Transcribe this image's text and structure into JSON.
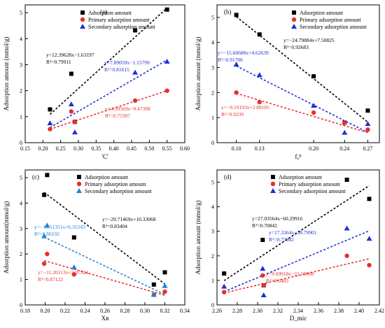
{
  "colors": {
    "adsorption": "#000000",
    "primary": "#e8302a",
    "secondary": "#1f2fd6",
    "secondary_c": "#1b83d8"
  },
  "chart_data": [
    {
      "type": "scatter",
      "panel": "(a)",
      "xlabel": "'C'",
      "ylabel": "Adsorption amount (mmol/g)",
      "xlim": [
        0.15,
        0.6
      ],
      "ylim": [
        0,
        5.3
      ],
      "xticks": [
        "0.15",
        "0.20",
        "0.25",
        "0.30",
        "0.35",
        "0.40",
        "0.45",
        "0.50",
        "0.55",
        "0.60"
      ],
      "yticks": [
        "0",
        "1",
        "2",
        "3",
        "4",
        "5"
      ],
      "legend": [
        "Adsorption amount",
        "Primary adsorption amount",
        "Secondary adsorption amount"
      ],
      "series": [
        {
          "name": "Adsorption amount",
          "marker": "square",
          "color": "#000000",
          "x": [
            0.22,
            0.28,
            0.29,
            0.46,
            0.55
          ],
          "y": [
            1.28,
            2.65,
            0.8,
            4.32,
            5.12
          ]
        },
        {
          "name": "Primary adsorption amount",
          "marker": "circle",
          "color": "#e8302a",
          "x": [
            0.22,
            0.28,
            0.29,
            0.46,
            0.55
          ],
          "y": [
            0.52,
            1.2,
            0.8,
            1.62,
            2.0
          ]
        },
        {
          "name": "Secondary adsorption amount",
          "marker": "triangle",
          "color": "#1f2fd6",
          "x": [
            0.22,
            0.28,
            0.29,
            0.46,
            0.55
          ],
          "y": [
            0.75,
            1.48,
            0.4,
            2.7,
            3.12
          ]
        }
      ],
      "fits": [
        {
          "color": "#000000",
          "x": [
            0.22,
            0.55
          ],
          "y": [
            1.09,
            5.18
          ],
          "equation": "y=12.39628x−1.63197",
          "r2": "R²=0.79911"
        },
        {
          "color": "#1f2fd6",
          "x": [
            0.22,
            0.55
          ],
          "y": [
            0.58,
            3.18
          ],
          "equation": "y=7.89059x−1.15799",
          "r2": "R²=0.81615"
        },
        {
          "color": "#e8302a",
          "x": [
            0.22,
            0.55
          ],
          "y": [
            0.52,
            2.0
          ],
          "equation": "y=4.50569x−0.47398",
          "r2": "R²=0.75307"
        }
      ]
    },
    {
      "type": "scatter",
      "panel": "(b)",
      "xlabel": "fₐᴮ",
      "ylabel": "Adsorption amount (mmol/g)",
      "xlim": [
        0.075,
        0.285
      ],
      "ylim": [
        0,
        5.5
      ],
      "xticks": [
        "0.10",
        "0.13",
        "0.20",
        "0.24",
        "0.27"
      ],
      "xtick_values": [
        0.1,
        0.13,
        0.2,
        0.24,
        0.27
      ],
      "yticks": [
        "0",
        "1",
        "2",
        "3",
        "4",
        "5"
      ],
      "legend": [
        "Adsorption amount",
        "Primary adsorption amount",
        "Secondary adsorption amount"
      ],
      "series": [
        {
          "name": "Adsorption amount",
          "marker": "square",
          "color": "#000000",
          "x": [
            0.1,
            0.13,
            0.2,
            0.24,
            0.27
          ],
          "y": [
            5.1,
            4.32,
            2.65,
            0.8,
            1.28
          ]
        },
        {
          "name": "Primary adsorption amount",
          "marker": "circle",
          "color": "#e8302a",
          "x": [
            0.1,
            0.13,
            0.2,
            0.24,
            0.27
          ],
          "y": [
            2.0,
            1.62,
            1.2,
            0.8,
            0.52
          ]
        },
        {
          "name": "Secondary adsorption amount",
          "marker": "triangle",
          "color": "#1f2fd6",
          "x": [
            0.1,
            0.13,
            0.2,
            0.24,
            0.27
          ],
          "y": [
            3.12,
            2.7,
            1.48,
            0.4,
            0.75
          ]
        }
      ],
      "fits": [
        {
          "color": "#000000",
          "x": [
            0.1,
            0.27
          ],
          "y": [
            5.03,
            0.82
          ],
          "equation": "y=−24.79884x+7.50825",
          "r2": "R²=0.92683"
        },
        {
          "color": "#1f2fd6",
          "x": [
            0.1,
            0.27
          ],
          "y": [
            3.06,
            0.41
          ],
          "equation": "y=−15.60688x+4.62639",
          "r2": "R²=0.91706"
        },
        {
          "color": "#e8302a",
          "x": [
            0.1,
            0.27
          ],
          "y": [
            1.97,
            0.4
          ],
          "equation": "y=−9.19193x+2.88185",
          "r2": "R²=0.9239"
        }
      ]
    },
    {
      "type": "scatter",
      "panel": "(c)",
      "xlabel": "Xʙ",
      "ylabel": "Adsorption amount(mmol/g)",
      "xlim": [
        0.18,
        0.34
      ],
      "ylim": [
        0,
        5.3
      ],
      "xticks": [
        "0.18",
        "0.20",
        "0.22",
        "0.24",
        "0.26",
        "0.28",
        "0.30",
        "0.32",
        "0.34"
      ],
      "yticks": [
        "0",
        "1",
        "2",
        "3",
        "4",
        "5"
      ],
      "legend": [
        "Adsorption amount",
        "Primary adsorption amount",
        "Secondary adsorption amount"
      ],
      "series": [
        {
          "name": "Adsorption amount",
          "marker": "square",
          "color": "#000000",
          "x": [
            0.199,
            0.202,
            0.229,
            0.309,
            0.32
          ],
          "y": [
            4.32,
            5.1,
            2.65,
            0.8,
            1.28
          ]
        },
        {
          "name": "Primary adsorption amount",
          "marker": "circle",
          "color": "#e8302a",
          "x": [
            0.199,
            0.202,
            0.229,
            0.309,
            0.32
          ],
          "y": [
            1.62,
            2.0,
            1.2,
            0.4,
            0.52
          ]
        },
        {
          "name": "Secondary adsorption amount",
          "marker": "triangle",
          "color": "#1b83d8",
          "x": [
            0.199,
            0.202,
            0.229,
            0.309,
            0.32
          ],
          "y": [
            2.7,
            3.12,
            1.48,
            0.4,
            0.75
          ]
        }
      ],
      "fits": [
        {
          "color": "#000000",
          "x": [
            0.199,
            0.32
          ],
          "y": [
            4.42,
            0.82
          ],
          "equation": "y=−29.71469x+10.33068",
          "r2": "R²=0.83404"
        },
        {
          "color": "#1b83d8",
          "x": [
            0.199,
            0.32
          ],
          "y": [
            2.66,
            0.41
          ],
          "equation": "y=−18.51351x+6.35543",
          "r2": "R²=0.80192"
        },
        {
          "color": "#e8302a",
          "x": [
            0.199,
            0.32
          ],
          "y": [
            1.74,
            0.38
          ],
          "equation": "y=−11.20113x+3.97524",
          "r2": "R²=0.87122"
        }
      ]
    },
    {
      "type": "scatter",
      "panel": "(d)",
      "xlabel": "D_mic",
      "ylabel": "Adsorption amount (mmol/g)",
      "xlim": [
        2.26,
        2.42
      ],
      "ylim": [
        0,
        5.5
      ],
      "xticks": [
        "2.26",
        "2.28",
        "2.30",
        "2.32",
        "2.34",
        "2.36",
        "2.38",
        "2.40",
        "2.42"
      ],
      "yticks": [
        "0",
        "1",
        "2",
        "3",
        "4",
        "5"
      ],
      "legend": [
        "Adsorption amount",
        "Primary adsorption amount",
        "Secondary adsorption amount"
      ],
      "series": [
        {
          "name": "Adsorption amount",
          "marker": "square",
          "color": "#000000",
          "x": [
            2.267,
            2.305,
            2.306,
            2.388,
            2.41
          ],
          "y": [
            1.28,
            2.65,
            0.8,
            5.1,
            4.32
          ]
        },
        {
          "name": "Primary adsorption amount",
          "marker": "circle",
          "color": "#e8302a",
          "x": [
            2.267,
            2.305,
            2.306,
            2.388,
            2.41
          ],
          "y": [
            0.52,
            1.2,
            0.8,
            2.0,
            1.62
          ]
        },
        {
          "name": "Secondary adsorption amount",
          "marker": "triangle",
          "color": "#1f2fd6",
          "x": [
            2.267,
            2.305,
            2.306,
            2.388,
            2.41
          ],
          "y": [
            0.75,
            1.48,
            0.4,
            3.12,
            2.7
          ]
        }
      ],
      "fits": [
        {
          "color": "#000000",
          "x": [
            2.267,
            2.41
          ],
          "y": [
            0.99,
            4.86
          ],
          "equation": "y=27.03564x−60.29916",
          "r2": "R²=0.70842"
        },
        {
          "color": "#1f2fd6",
          "x": [
            2.267,
            2.41
          ],
          "y": [
            0.54,
            3.02
          ],
          "equation": "y=17.3364x−38.79901",
          "r2": "R²=0.73982"
        },
        {
          "color": "#e8302a",
          "x": [
            2.267,
            2.41
          ],
          "y": [
            0.49,
            1.88
          ],
          "equation": "y=9.69918x−21.50008",
          "r2": "R²=0.6403"
        }
      ]
    }
  ]
}
